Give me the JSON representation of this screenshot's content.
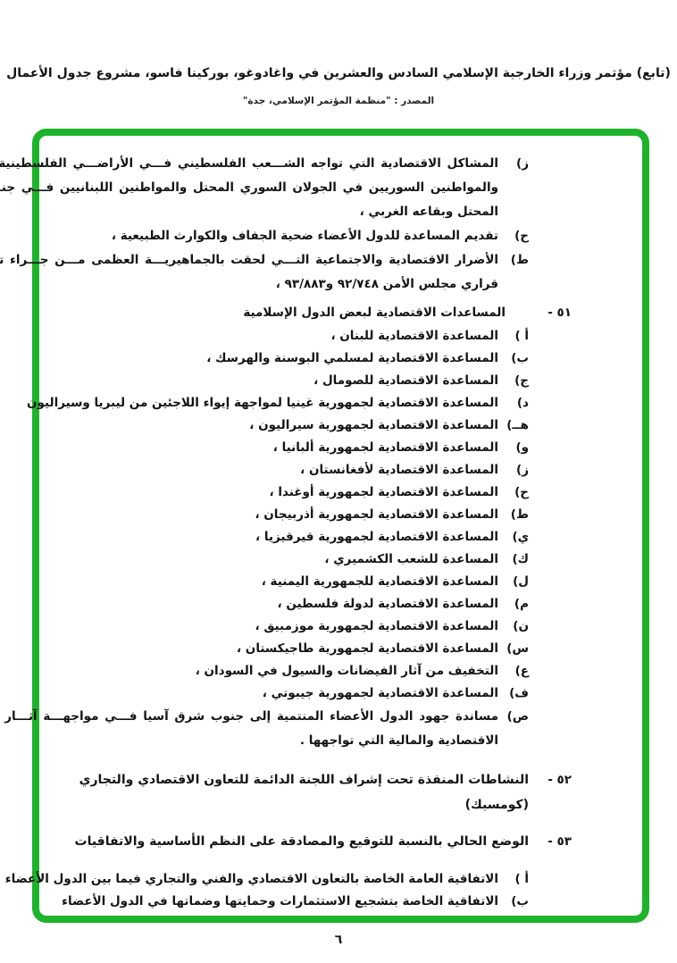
{
  "header": {
    "title_line": "(تابع) مؤتمر وزراء الخارجية الإسلامي السادس والعشرين في واغادوغو، بوركينا فاسو، مشروع جدول الأعمال",
    "source_line": "المصدر :  \"منظمة المؤتمر الإسلامي، جدة\""
  },
  "frame": {
    "border_color": "#1db32b"
  },
  "page_number": "٦",
  "agenda": {
    "top_items": [
      {
        "label": "ز)",
        "lines": [
          "المشاكل الاقتصادية التي تواجه الشـــعب الفلسطيني فـــي الأراضـــي الفلسطينية المحتلـــة",
          "والمواطنين السوريين في الجولان السوري المحتل والمواطنين اللبنانيين فـــي جنـــوب لبنـــان",
          "المحتل وبقاعه الغربي ،"
        ]
      },
      {
        "label": "ح)",
        "lines": [
          "تقديم المساعدة للدول الأعضاء ضحية الجفاف والكوارث الطبيعية ،"
        ]
      },
      {
        "label": "ط)",
        "lines": [
          "الأضرار الاقتصادية والاجتماعية التـــي لحقت بالجماهيريـــة العظمى مـــن جـــراء تنفيـــذ",
          "قراري مجلس الأمن ٩٢/٧٤٨ و٩٣/٨٨٣ ،"
        ]
      }
    ],
    "item51": {
      "number": "٥١ -",
      "title": "المساعدات الاقتصادية لبعض الدول الإسلامية",
      "sub_items": [
        {
          "label": "أ )",
          "text": "المساعدة الاقتصادية للبنان ،"
        },
        {
          "label": "ب)",
          "text": "المساعدة الاقتصادية لمسلمي البوسنة والهرسك ،"
        },
        {
          "label": "ج)",
          "text": "المساعدة الاقتصادية للصومال ،"
        },
        {
          "label": "د)",
          "text": "المساعدة الاقتصادية لجمهورية غينيا لمواجهة إيواء اللاجئين من ليبريا وسيراليون"
        },
        {
          "label": "هــ)",
          "text": "المساعدة الاقتصادية لجمهورية سيراليون ،"
        },
        {
          "label": "و)",
          "text": "المساعدة الاقتصادية لجمهورية ألبانيا ،"
        },
        {
          "label": "ز)",
          "text": "المساعدة الاقتصادية لأفغانستان ،"
        },
        {
          "label": "ح)",
          "text": "المساعدة الاقتصادية لجمهورية أوغندا ،"
        },
        {
          "label": "ط)",
          "text": "المساعدة الاقتصادية لجمهورية أذربيجان ،"
        },
        {
          "label": "ي)",
          "text": "المساعدة الاقتصادية لجمهورية قيرقيزيا ،"
        },
        {
          "label": "ك)",
          "text": "المساعدة للشعب الكشميري ،"
        },
        {
          "label": "ل)",
          "text": "المساعدة الاقتصادية للجمهورية اليمنية ،"
        },
        {
          "label": "م)",
          "text": "المساعدة الاقتصادية لدولة فلسطين ،"
        },
        {
          "label": "ن)",
          "text": "المساعدة الاقتصادية لجمهورية موزمبيق ،"
        },
        {
          "label": "س)",
          "text": "المساعدة الاقتصادية لجمهورية طاجيكستان ،"
        },
        {
          "label": "ع)",
          "text": "التخفيف من آثار الفيضانات والسيول في السودان ،"
        },
        {
          "label": "ف)",
          "text": "المساعدة الاقتصادية لجمهورية جيبوتي ،"
        }
      ],
      "last_sub": {
        "label": "ص)",
        "lines": [
          "مساندة جهود الدول الأعضاء المنتمية إلى جنوب شرق آسيا فـــي مواجهـــة آثـــار الأزمـــة",
          "الاقتصادية والمالية التي تواجهها ."
        ]
      }
    },
    "item52": {
      "number": "٥٢ -",
      "title": "النشاطات المنفذة تحت إشراف اللجنة الدائمة للتعاون الاقتصادي والتجاري (كومسيك)"
    },
    "item53": {
      "number": "٥٣ -",
      "title": "الوضع الحالي بالنسبة للتوقيع والمصادقة على النظم الأساسية والاتفاقيات"
    },
    "agreements": [
      {
        "label": "أ )",
        "text": "الاتفاقية العامة الخاصة بالتعاون الاقتصادي والفني والتجاري فيما بين الدول الأعضاء"
      },
      {
        "label": "ب)",
        "text": "الاتفاقية الخاصة بتشجيع الاستثمارات وحمايتها وضماتها في الدول الأعضاء"
      }
    ]
  }
}
